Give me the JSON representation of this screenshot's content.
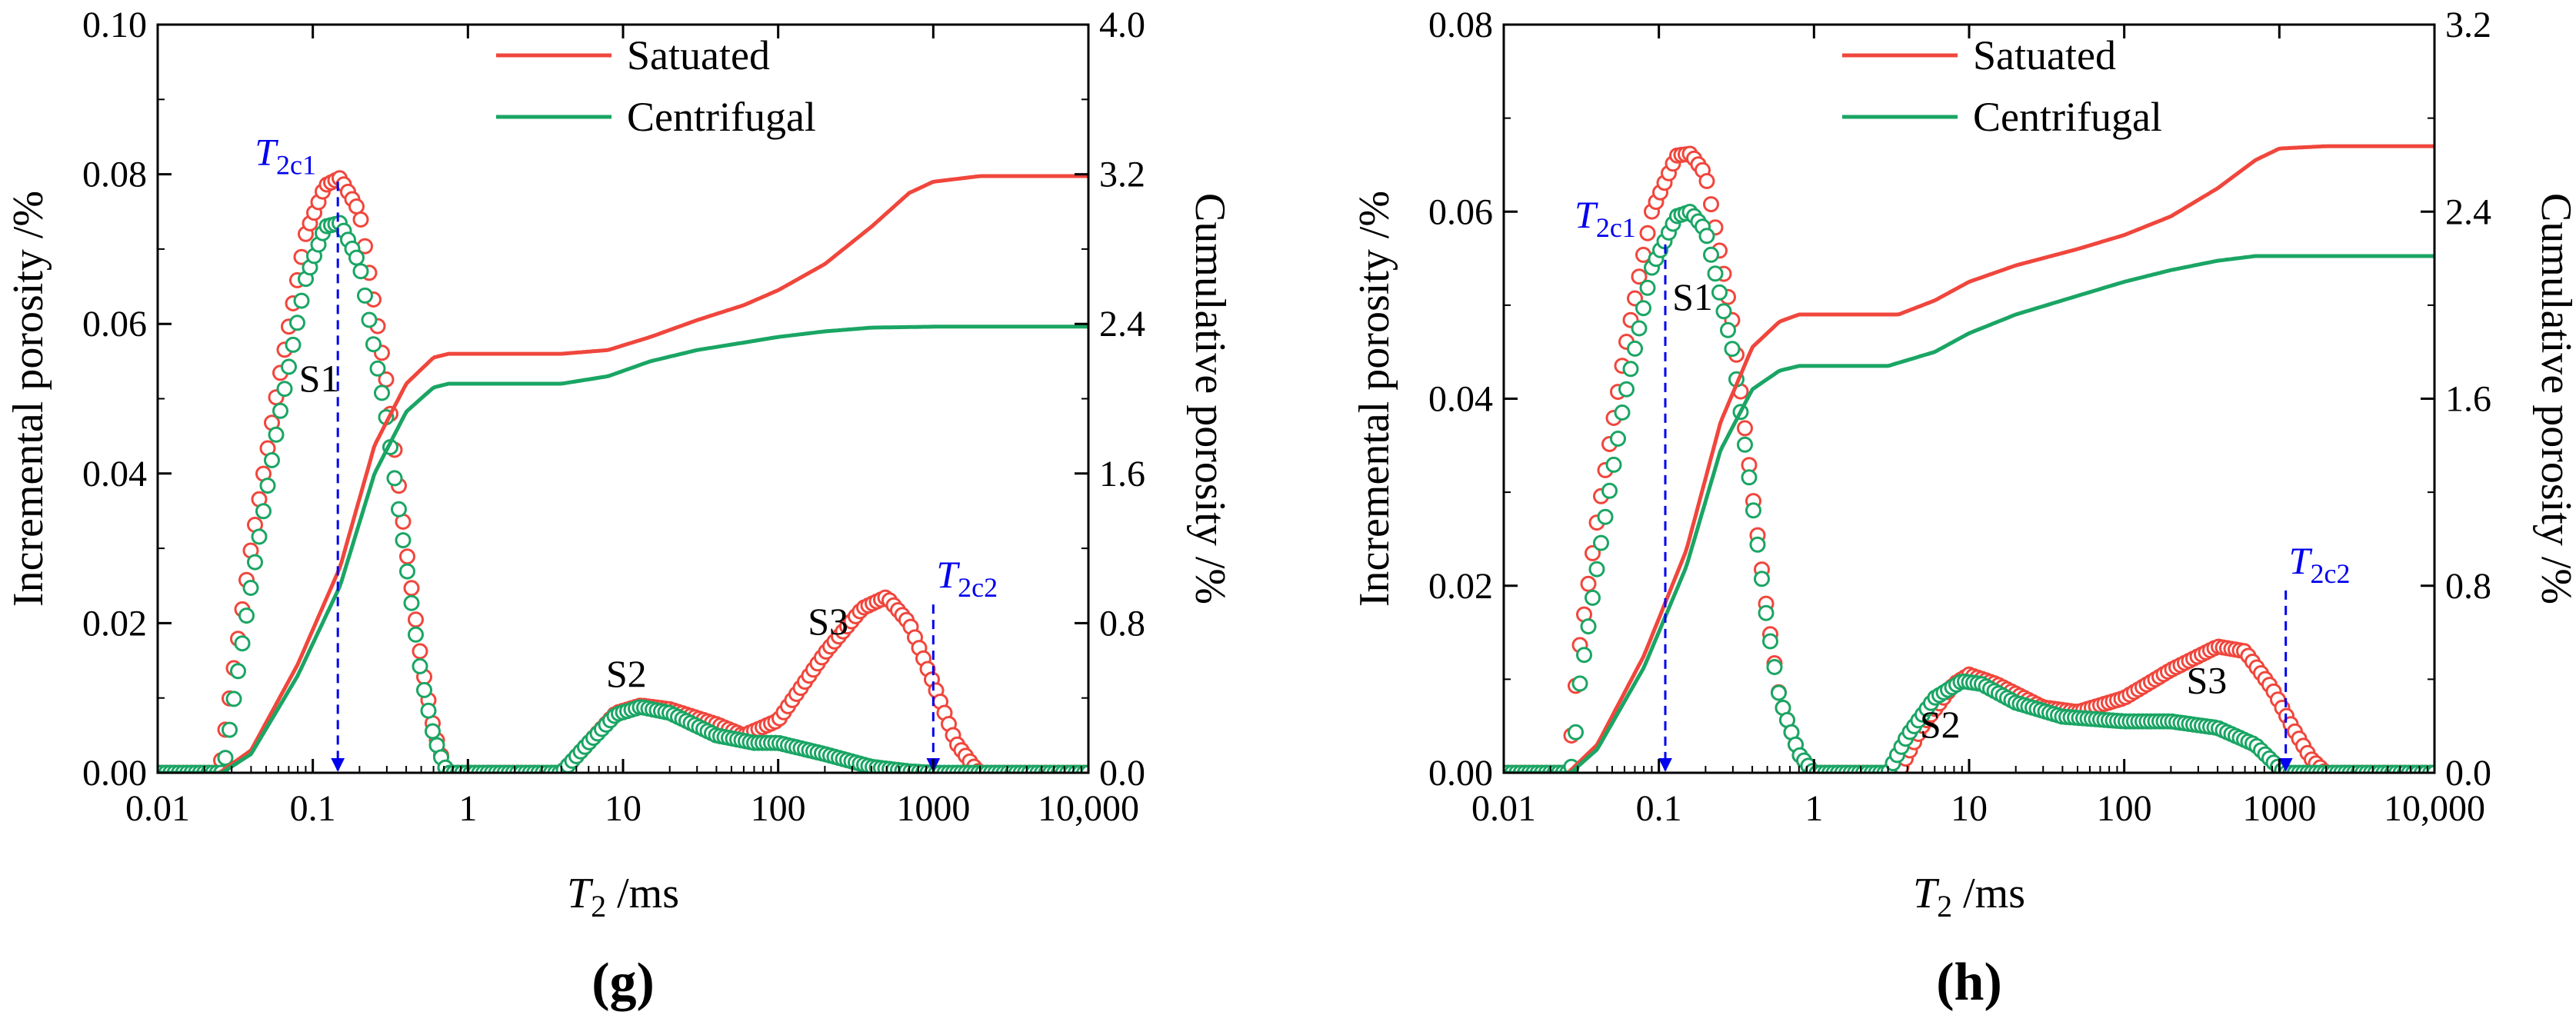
{
  "colors": {
    "saturated": "#f0463c",
    "centrifugal": "#1aa564",
    "cutoff": "#0000ee"
  },
  "chart_data": [
    {
      "type": "line",
      "panel_label": "g",
      "xlabel": "T2 /ms",
      "xlabel_main": "T",
      "xlabel_sub": "2",
      "xlabel_unit": " /ms",
      "ylabel": "Incremental porosity /%",
      "y2label": "Cumulative porosity /%",
      "xscale": "log",
      "xlim": [
        0.01,
        10000
      ],
      "xticks": [
        "0.01",
        "0.1",
        "1",
        "10",
        "100",
        "1000",
        "10,000"
      ],
      "ylim": [
        0,
        0.1
      ],
      "yticks": [
        "0.00",
        "0.02",
        "0.04",
        "0.06",
        "0.08",
        "0.10"
      ],
      "y2lim": [
        0,
        4.0
      ],
      "y2ticks": [
        "0.0",
        "0.8",
        "1.6",
        "2.4",
        "3.2",
        "4.0"
      ],
      "legend": [
        "Satuated",
        "Centrifugal"
      ],
      "peak_labels": [
        {
          "text": "S1",
          "x": 0.11,
          "y": 0.051
        },
        {
          "text": "S2",
          "x": 10.5,
          "y": 0.0115
        },
        {
          "text": "S3",
          "x": 210,
          "y": 0.0185
        }
      ],
      "cutoffs": [
        {
          "name": "T2c1",
          "main": "T",
          "sub": "2c1",
          "x": 0.145,
          "y_top": 0.079
        },
        {
          "name": "T2c2",
          "main": "T",
          "sub": "2c2",
          "x": 1000,
          "y_top": 0.0225
        }
      ],
      "incremental_series": [
        {
          "name": "Satuated",
          "points": [
            [
              0.01,
              0
            ],
            [
              0.025,
              0
            ],
            [
              0.027,
              0.005
            ],
            [
              0.03,
              0.012
            ],
            [
              0.04,
              0.03
            ],
            [
              0.06,
              0.052
            ],
            [
              0.09,
              0.072
            ],
            [
              0.12,
              0.0785
            ],
            [
              0.15,
              0.0795
            ],
            [
              0.2,
              0.075
            ],
            [
              0.3,
              0.052
            ],
            [
              0.4,
              0.03
            ],
            [
              0.5,
              0.015
            ],
            [
              0.6,
              0.006
            ],
            [
              0.7,
              0.001
            ],
            [
              0.75,
              0
            ],
            [
              4,
              0
            ],
            [
              6,
              0.004
            ],
            [
              9,
              0.008
            ],
            [
              13,
              0.009
            ],
            [
              20,
              0.0085
            ],
            [
              40,
              0.0065
            ],
            [
              60,
              0.005
            ],
            [
              100,
              0.007
            ],
            [
              200,
              0.016
            ],
            [
              350,
              0.022
            ],
            [
              500,
              0.0235
            ],
            [
              700,
              0.02
            ],
            [
              1000,
              0.012
            ],
            [
              1400,
              0.004
            ],
            [
              1800,
              0.001
            ],
            [
              2000,
              0
            ],
            [
              10000,
              0
            ]
          ]
        },
        {
          "name": "Centrifugal",
          "points": [
            [
              0.01,
              0
            ],
            [
              0.026,
              0
            ],
            [
              0.028,
              0.003
            ],
            [
              0.03,
              0.008
            ],
            [
              0.04,
              0.025
            ],
            [
              0.06,
              0.047
            ],
            [
              0.09,
              0.066
            ],
            [
              0.12,
              0.073
            ],
            [
              0.15,
              0.0735
            ],
            [
              0.2,
              0.068
            ],
            [
              0.3,
              0.047
            ],
            [
              0.4,
              0.028
            ],
            [
              0.5,
              0.013
            ],
            [
              0.6,
              0.005
            ],
            [
              0.7,
              0.001
            ],
            [
              0.75,
              0
            ],
            [
              4,
              0
            ],
            [
              6,
              0.004
            ],
            [
              9,
              0.0078
            ],
            [
              13,
              0.0088
            ],
            [
              20,
              0.008
            ],
            [
              40,
              0.005
            ],
            [
              70,
              0.004
            ],
            [
              100,
              0.004
            ],
            [
              200,
              0.0025
            ],
            [
              400,
              0.0008
            ],
            [
              700,
              0.0002
            ],
            [
              1000,
              0
            ],
            [
              10000,
              0
            ]
          ]
        }
      ],
      "cumulative_series": [
        {
          "name": "Satuated",
          "points": [
            [
              0.01,
              0
            ],
            [
              0.025,
              0
            ],
            [
              0.04,
              0.12
            ],
            [
              0.08,
              0.58
            ],
            [
              0.15,
              1.1
            ],
            [
              0.25,
              1.75
            ],
            [
              0.4,
              2.08
            ],
            [
              0.6,
              2.22
            ],
            [
              0.75,
              2.24
            ],
            [
              4,
              2.24
            ],
            [
              8,
              2.26
            ],
            [
              15,
              2.33
            ],
            [
              30,
              2.42
            ],
            [
              60,
              2.5
            ],
            [
              100,
              2.58
            ],
            [
              200,
              2.72
            ],
            [
              400,
              2.92
            ],
            [
              700,
              3.1
            ],
            [
              1000,
              3.16
            ],
            [
              2000,
              3.19
            ],
            [
              10000,
              3.19
            ]
          ]
        },
        {
          "name": "Centrifugal",
          "points": [
            [
              0.01,
              0
            ],
            [
              0.026,
              0
            ],
            [
              0.04,
              0.1
            ],
            [
              0.08,
              0.52
            ],
            [
              0.15,
              1.0
            ],
            [
              0.25,
              1.6
            ],
            [
              0.4,
              1.93
            ],
            [
              0.6,
              2.06
            ],
            [
              0.75,
              2.08
            ],
            [
              4,
              2.08
            ],
            [
              8,
              2.12
            ],
            [
              15,
              2.2
            ],
            [
              30,
              2.26
            ],
            [
              60,
              2.3
            ],
            [
              100,
              2.33
            ],
            [
              200,
              2.36
            ],
            [
              400,
              2.38
            ],
            [
              1000,
              2.385
            ],
            [
              10000,
              2.385
            ]
          ]
        }
      ]
    },
    {
      "type": "line",
      "panel_label": "h",
      "xlabel": "T2 /ms",
      "xlabel_main": "T",
      "xlabel_sub": "2",
      "xlabel_unit": " /ms",
      "ylabel": "Incremental porosity /%",
      "y2label": "Cumulative porosity /%",
      "xscale": "log",
      "xlim": [
        0.01,
        10000
      ],
      "xticks": [
        "0.01",
        "0.1",
        "1",
        "10",
        "100",
        "1000",
        "10,000"
      ],
      "ylim": [
        0,
        0.08
      ],
      "yticks": [
        "0.00",
        "0.02",
        "0.04",
        "0.06",
        "0.08"
      ],
      "y2lim": [
        0,
        3.2
      ],
      "y2ticks": [
        "0.0",
        "0.8",
        "1.6",
        "2.4",
        "3.2"
      ],
      "legend": [
        "Satuated",
        "Centrifugal"
      ],
      "peak_labels": [
        {
          "text": "S1",
          "x": 0.165,
          "y": 0.0495
        },
        {
          "text": "S2",
          "x": 6.5,
          "y": 0.0038
        },
        {
          "text": "S3",
          "x": 340,
          "y": 0.0085
        }
      ],
      "cutoffs": [
        {
          "name": "T2c1",
          "main": "T",
          "sub": "2c1",
          "x": 0.11,
          "y_top": 0.0565
        },
        {
          "name": "T2c2",
          "main": "T",
          "sub": "2c2",
          "x": 1100,
          "y_top": 0.0195
        }
      ],
      "incremental_series": [
        {
          "name": "Satuated",
          "points": [
            [
              0.01,
              0
            ],
            [
              0.026,
              0
            ],
            [
              0.028,
              0.006
            ],
            [
              0.03,
              0.012
            ],
            [
              0.04,
              0.027
            ],
            [
              0.06,
              0.045
            ],
            [
              0.09,
              0.06
            ],
            [
              0.13,
              0.066
            ],
            [
              0.16,
              0.0662
            ],
            [
              0.2,
              0.064
            ],
            [
              0.3,
              0.048
            ],
            [
              0.4,
              0.03
            ],
            [
              0.5,
              0.017
            ],
            [
              0.6,
              0.008
            ],
            [
              0.8,
              0.002
            ],
            [
              1,
              0
            ],
            [
              3.5,
              0
            ],
            [
              5,
              0.005
            ],
            [
              8,
              0.0095
            ],
            [
              10,
              0.0105
            ],
            [
              15,
              0.0095
            ],
            [
              30,
              0.007
            ],
            [
              50,
              0.0065
            ],
            [
              100,
              0.008
            ],
            [
              200,
              0.011
            ],
            [
              400,
              0.0135
            ],
            [
              600,
              0.013
            ],
            [
              900,
              0.009
            ],
            [
              1200,
              0.005
            ],
            [
              1600,
              0.0015
            ],
            [
              2000,
              0
            ],
            [
              10000,
              0
            ]
          ]
        },
        {
          "name": "Centrifugal",
          "points": [
            [
              0.01,
              0
            ],
            [
              0.027,
              0
            ],
            [
              0.029,
              0.004
            ],
            [
              0.03,
              0.008
            ],
            [
              0.04,
              0.022
            ],
            [
              0.06,
              0.04
            ],
            [
              0.09,
              0.054
            ],
            [
              0.13,
              0.0595
            ],
            [
              0.16,
              0.06
            ],
            [
              0.2,
              0.058
            ],
            [
              0.3,
              0.045
            ],
            [
              0.4,
              0.029
            ],
            [
              0.5,
              0.016
            ],
            [
              0.6,
              0.008
            ],
            [
              0.8,
              0.002
            ],
            [
              1,
              0
            ],
            [
              3,
              0
            ],
            [
              4,
              0.004
            ],
            [
              6,
              0.008
            ],
            [
              9,
              0.0098
            ],
            [
              12,
              0.0095
            ],
            [
              20,
              0.0075
            ],
            [
              40,
              0.006
            ],
            [
              100,
              0.0055
            ],
            [
              200,
              0.0055
            ],
            [
              400,
              0.0048
            ],
            [
              700,
              0.003
            ],
            [
              1000,
              0.0005
            ],
            [
              1100,
              0
            ],
            [
              10000,
              0
            ]
          ]
        }
      ],
      "cumulative_series": [
        {
          "name": "Satuated",
          "points": [
            [
              0.01,
              0
            ],
            [
              0.026,
              0
            ],
            [
              0.04,
              0.12
            ],
            [
              0.08,
              0.5
            ],
            [
              0.15,
              0.95
            ],
            [
              0.25,
              1.5
            ],
            [
              0.4,
              1.82
            ],
            [
              0.6,
              1.93
            ],
            [
              0.8,
              1.96
            ],
            [
              3.5,
              1.96
            ],
            [
              6,
              2.02
            ],
            [
              10,
              2.1
            ],
            [
              20,
              2.17
            ],
            [
              50,
              2.24
            ],
            [
              100,
              2.3
            ],
            [
              200,
              2.38
            ],
            [
              400,
              2.5
            ],
            [
              700,
              2.62
            ],
            [
              1000,
              2.67
            ],
            [
              2000,
              2.68
            ],
            [
              10000,
              2.68
            ]
          ]
        },
        {
          "name": "Centrifugal",
          "points": [
            [
              0.01,
              0
            ],
            [
              0.027,
              0
            ],
            [
              0.04,
              0.1
            ],
            [
              0.08,
              0.45
            ],
            [
              0.15,
              0.88
            ],
            [
              0.25,
              1.38
            ],
            [
              0.4,
              1.64
            ],
            [
              0.6,
              1.72
            ],
            [
              0.8,
              1.74
            ],
            [
              3,
              1.74
            ],
            [
              6,
              1.8
            ],
            [
              10,
              1.88
            ],
            [
              20,
              1.96
            ],
            [
              50,
              2.04
            ],
            [
              100,
              2.1
            ],
            [
              200,
              2.15
            ],
            [
              400,
              2.19
            ],
            [
              700,
              2.21
            ],
            [
              1000,
              2.21
            ],
            [
              10000,
              2.21
            ]
          ]
        }
      ]
    }
  ]
}
